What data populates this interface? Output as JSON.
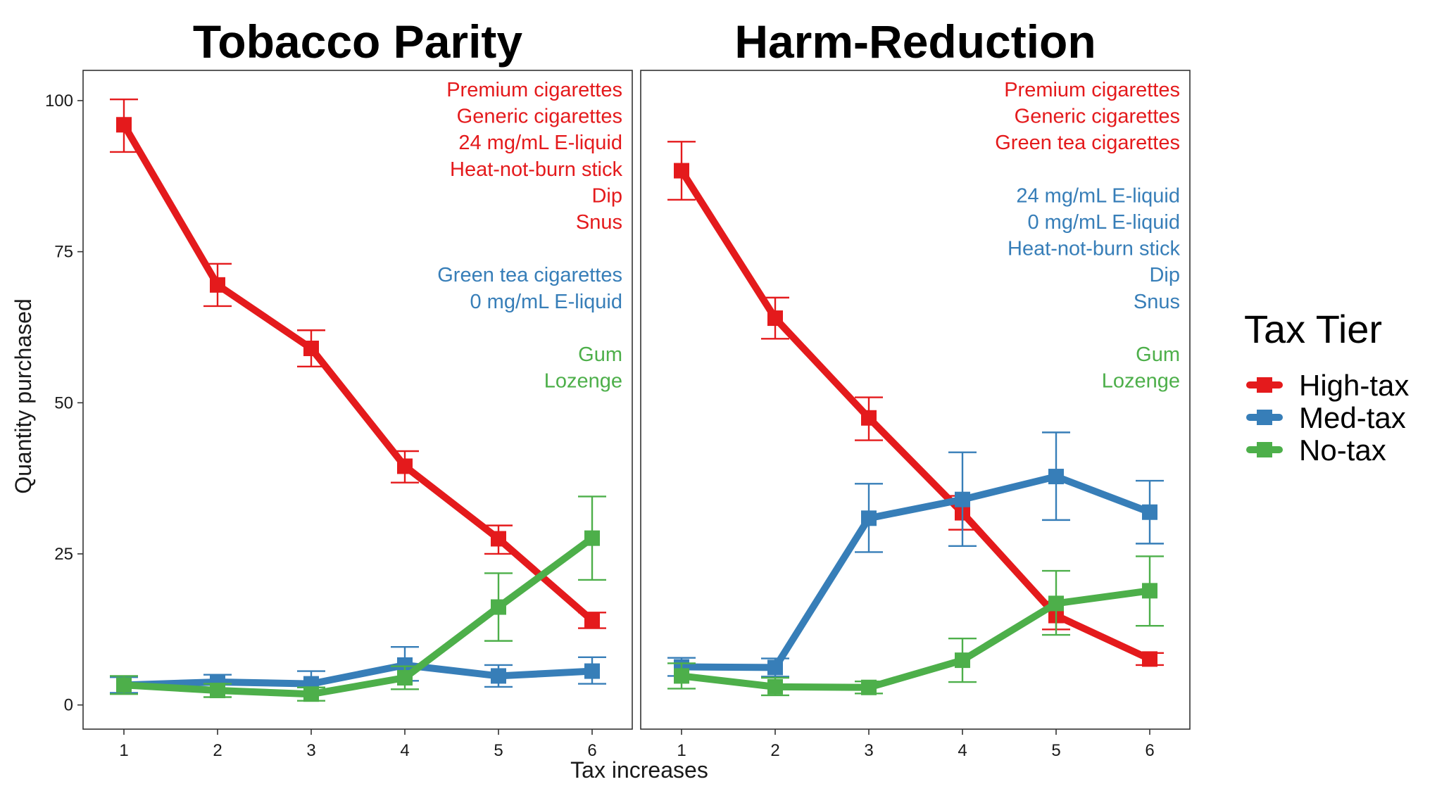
{
  "chart_data": {
    "type": "line",
    "xlabel": "Tax increases",
    "ylabel": "Quantity purchased",
    "x": [
      1,
      2,
      3,
      4,
      5,
      6
    ],
    "xticks": [
      "1",
      "2",
      "3",
      "4",
      "5",
      "6"
    ],
    "yticks": [
      "0",
      "25",
      "50",
      "75",
      "100"
    ],
    "ylim": [
      -4,
      105
    ],
    "colors": {
      "High-tax": "#e41a1c",
      "Med-tax": "#377eb8",
      "No-tax": "#4daf4a"
    },
    "legend": {
      "title": "Tax Tier",
      "position": "right",
      "entries": [
        "High-tax",
        "Med-tax",
        "No-tax"
      ]
    },
    "panels": [
      {
        "title": "Tobacco Parity",
        "product_groups": [
          {
            "tier": "High-tax",
            "items": [
              "Premium cigarettes",
              "Generic cigarettes",
              "24 mg/mL E-liquid",
              "Heat-not-burn stick",
              "Dip",
              "Snus"
            ]
          },
          {
            "tier": "Med-tax",
            "items": [
              "Green tea cigarettes",
              "0 mg/mL E-liquid"
            ]
          },
          {
            "tier": "No-tax",
            "items": [
              "Gum",
              "Lozenge"
            ]
          }
        ],
        "series": [
          {
            "name": "High-tax",
            "values": [
              96,
              69.5,
              59,
              39.5,
              27.5,
              14
            ],
            "err_low": [
              91.5,
              66,
              56,
              36.8,
              25,
              12.7
            ],
            "err_high": [
              100.2,
              73,
              62,
              42,
              29.7,
              15.3
            ]
          },
          {
            "name": "Med-tax",
            "values": [
              3.3,
              3.8,
              3.5,
              6.6,
              4.8,
              5.6
            ],
            "err_low": [
              2,
              2.5,
              1.8,
              4,
              3,
              3.5
            ],
            "err_high": [
              4.6,
              5,
              5.6,
              9.6,
              6.6,
              7.9
            ]
          },
          {
            "name": "No-tax",
            "values": [
              3.3,
              2.4,
              1.8,
              4.5,
              16.2,
              27.6
            ],
            "err_low": [
              1.8,
              1.3,
              0.7,
              2.6,
              10.6,
              20.7
            ],
            "err_high": [
              4.8,
              3.5,
              2.9,
              6.4,
              21.8,
              34.5
            ]
          }
        ]
      },
      {
        "title": "Harm-Reduction",
        "product_groups": [
          {
            "tier": "High-tax",
            "items": [
              "Premium cigarettes",
              "Generic cigarettes",
              "Green tea cigarettes"
            ]
          },
          {
            "tier": "Med-tax",
            "items": [
              "24 mg/mL E-liquid",
              "0 mg/mL E-liquid",
              "Heat-not-burn stick",
              "Dip",
              "Snus"
            ]
          },
          {
            "tier": "No-tax",
            "items": [
              "Gum",
              "Lozenge"
            ]
          }
        ],
        "series": [
          {
            "name": "High-tax",
            "values": [
              88.4,
              64,
              47.5,
              31.8,
              14.8,
              7.6
            ],
            "err_low": [
              83.6,
              60.6,
              43.8,
              29,
              12.5,
              6.6
            ],
            "err_high": [
              93.2,
              67.4,
              50.9,
              34.6,
              17.1,
              8.6
            ]
          },
          {
            "name": "Med-tax",
            "values": [
              6.3,
              6.2,
              30.9,
              34,
              37.8,
              31.9
            ],
            "err_low": [
              4.8,
              4.7,
              25.3,
              26.3,
              30.6,
              26.7
            ],
            "err_high": [
              7.8,
              7.7,
              36.6,
              41.8,
              45.1,
              37.1
            ]
          },
          {
            "name": "No-tax",
            "values": [
              4.8,
              3,
              2.9,
              7.4,
              16.8,
              18.9
            ],
            "err_low": [
              2.7,
              1.6,
              1.9,
              3.8,
              11.6,
              13.1
            ],
            "err_high": [
              6.9,
              4.5,
              3.9,
              11,
              22.2,
              24.6
            ]
          }
        ]
      }
    ]
  }
}
